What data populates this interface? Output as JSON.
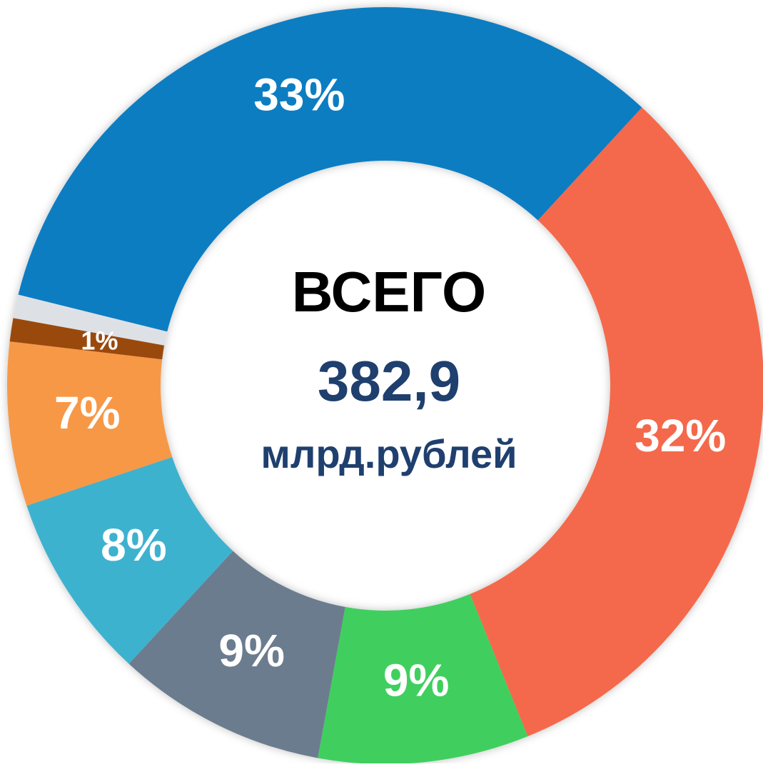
{
  "chart_data": {
    "type": "donut",
    "values": [
      33,
      32,
      9,
      9,
      8,
      7,
      1,
      1
    ],
    "value_labels": [
      "33%",
      "32%",
      "9%",
      "9%",
      "8%",
      "7%",
      "1%",
      null
    ],
    "colors": [
      "#0a7dc2",
      "#f4694c",
      "#40cf5e",
      "#6c7b8f",
      "#3db2cf",
      "#f79846",
      "#9a4a0a",
      "#dde1e6"
    ],
    "center_texts": [
      "ВСЕГО",
      "382,9",
      "млрд.рублей"
    ]
  }
}
